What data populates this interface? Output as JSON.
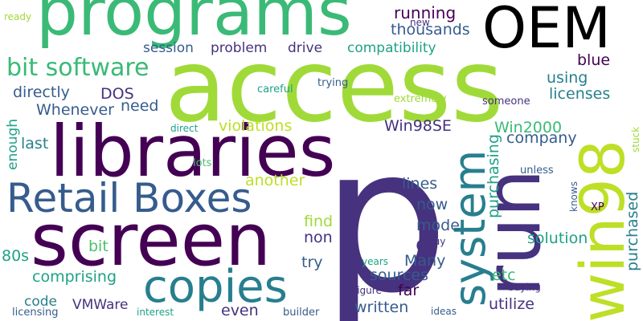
{
  "words": {
    "access": {
      "text": "access",
      "color": "#a0da39"
    },
    "p": {
      "text": "p",
      "color": "#46327e"
    },
    "programs": {
      "text": "programs",
      "color": "#3aba76"
    },
    "libraries": {
      "text": "libraries",
      "color": "#440154"
    },
    "screen": {
      "text": "screen",
      "color": "#440154"
    },
    "win98": {
      "text": "win98",
      "color": "#bddf26"
    },
    "run": {
      "text": "run",
      "color": "#46327e"
    },
    "oem": {
      "text": "OEM",
      "color": "#440154"
    },
    "retail_boxes": {
      "text": "Retail Boxes",
      "color": "#365c8d"
    },
    "copies": {
      "text": "copies",
      "color": "#277f8e"
    },
    "system": {
      "text": "system",
      "color": "#277f8e"
    },
    "bit_software": {
      "text": "bit software",
      "color": "#3aba76"
    },
    "running": {
      "text": "running",
      "color": "#440154"
    },
    "thousands": {
      "text": "thousands",
      "color": "#365c8d"
    },
    "session": {
      "text": "session",
      "color": "#365c8d"
    },
    "problem": {
      "text": "problem",
      "color": "#46327e"
    },
    "drive": {
      "text": "drive",
      "color": "#46327e"
    },
    "compatibility": {
      "text": "compatibility",
      "color": "#1fa187"
    },
    "directly": {
      "text": "directly",
      "color": "#365c8d"
    },
    "dos": {
      "text": "DOS",
      "color": "#46327e"
    },
    "whenever": {
      "text": "Whenever",
      "color": "#365c8d"
    },
    "need": {
      "text": "need",
      "color": "#365c8d"
    },
    "violations": {
      "text": "violations",
      "color": "#bddf26"
    },
    "win98se": {
      "text": "Win98SE",
      "color": "#46327e"
    },
    "win2000": {
      "text": "Win2000",
      "color": "#3aba76"
    },
    "company": {
      "text": "company",
      "color": "#365c8d"
    },
    "last": {
      "text": "last",
      "color": "#277f8e"
    },
    "using": {
      "text": "using",
      "color": "#277f8e"
    },
    "licenses": {
      "text": "licenses",
      "color": "#277f8e"
    },
    "blue": {
      "text": "blue",
      "color": "#440154"
    },
    "another": {
      "text": "another",
      "color": "#bddf26"
    },
    "lines": {
      "text": "lines",
      "color": "#365c8d"
    },
    "now": {
      "text": "now",
      "color": "#365c8d"
    },
    "mode": {
      "text": "mode",
      "color": "#365c8d"
    },
    "find": {
      "text": "find",
      "color": "#a0da39"
    },
    "non": {
      "text": "non",
      "color": "#46327e"
    },
    "c": {
      "text": "c",
      "color": "#46327e"
    },
    "try": {
      "text": "try",
      "color": "#365c8d"
    },
    "many": {
      "text": "Many",
      "color": "#365c8d"
    },
    "sources": {
      "text": "sources",
      "color": "#365c8d"
    },
    "far": {
      "text": "far",
      "color": "#440154"
    },
    "etc": {
      "text": "etc",
      "color": "#3aba76"
    },
    "solution": {
      "text": "solution",
      "color": "#1fa187"
    },
    "utilize": {
      "text": "utilize",
      "color": "#46327e"
    },
    "written": {
      "text": "written",
      "color": "#365c8d"
    },
    "even": {
      "text": "even",
      "color": "#46327e"
    },
    "vmware": {
      "text": "VMWare",
      "color": "#46327e"
    },
    "code": {
      "text": "code",
      "color": "#277f8e"
    },
    "comprising": {
      "text": "comprising",
      "color": "#1fa187"
    },
    "80s": {
      "text": "80s",
      "color": "#1fa187"
    },
    "bit": {
      "text": "bit",
      "color": "#4ac16d"
    },
    "enough": {
      "text": "enough",
      "color": "#1fa187"
    },
    "purchasing": {
      "text": "purchasing",
      "color": "#1fa187"
    },
    "purchased": {
      "text": "purchased",
      "color": "#277f8e"
    },
    "ready": {
      "text": "ready",
      "color": "#a0da39"
    },
    "new": {
      "text": "new",
      "color": "#46327e"
    },
    "careful": {
      "text": "careful",
      "color": "#1fa187"
    },
    "trying": {
      "text": "trying",
      "color": "#365c8d"
    },
    "extremely": {
      "text": "extremely",
      "color": "#a0da39"
    },
    "someone": {
      "text": "someone",
      "color": "#46327e"
    },
    "direct": {
      "text": "direct",
      "color": "#1fa187"
    },
    "lots": {
      "text": "lots",
      "color": "#4ac16d"
    },
    "unless": {
      "text": "unless",
      "color": "#365c8d"
    },
    "knows": {
      "text": "knows",
      "color": "#365c8d"
    },
    "xp": {
      "text": "XP",
      "color": "#440154"
    },
    "stuck": {
      "text": "stuck",
      "color": "#a0da39"
    },
    "buy": {
      "text": "buy",
      "color": "#46327e"
    },
    "years": {
      "text": "years",
      "color": "#1fa187"
    },
    "figure": {
      "text": "figure",
      "color": "#46327e"
    },
    "buying": {
      "text": "buying",
      "color": "#46327e"
    },
    "interest": {
      "text": "interest",
      "color": "#1fa187"
    },
    "licensing": {
      "text": "licensing",
      "color": "#365c8d"
    },
    "builder": {
      "text": "builder",
      "color": "#365c8d"
    },
    "ideas": {
      "text": "ideas",
      "color": "#365c8d"
    }
  }
}
